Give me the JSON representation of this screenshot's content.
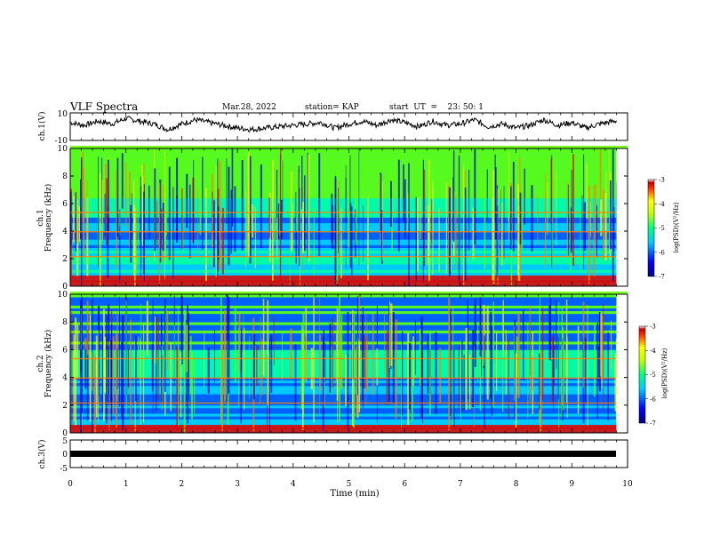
{
  "header": {
    "title": "VLF Spectra",
    "date": "Mar.28, 2022",
    "station": "station= KAP",
    "start": "start  UT  =    23: 50: 1"
  },
  "chart_data": [
    {
      "type": "line",
      "panel": "ch1",
      "ylabel": "ch.1(V)",
      "ylim": [
        -10,
        10
      ],
      "yticks": [
        "10",
        "-10"
      ],
      "xlim": [
        0,
        10
      ],
      "series": [
        {
          "x": [
            0,
            0.25,
            0.5,
            0.75,
            1,
            1.25,
            1.5,
            1.75,
            2,
            2.25,
            2.5,
            2.75,
            3,
            3.25,
            3.5,
            3.75,
            4,
            4.25,
            4.5,
            4.75,
            5,
            5.25,
            5.5,
            5.75,
            6,
            6.25,
            6.5,
            6.75,
            7,
            7.25,
            7.5,
            7.75,
            8,
            8.25,
            8.5,
            8.75,
            9,
            9.25,
            9.5,
            9.75
          ],
          "y": [
            3,
            1,
            4,
            2,
            6,
            4,
            2,
            -2,
            2,
            5,
            3,
            1,
            -1,
            -2,
            -1,
            0,
            1,
            2,
            3,
            -1,
            2,
            4,
            1,
            5,
            3,
            0,
            4,
            1,
            2,
            5,
            0,
            2,
            -1,
            1,
            5,
            1,
            3,
            -1,
            2,
            4
          ]
        }
      ]
    },
    {
      "type": "heatmap",
      "panel": "ch1-spectrogram",
      "ylabel": "ch.1 Frequency (kHz)",
      "ylim": [
        0,
        10
      ],
      "yticks": [
        "0",
        "2",
        "4",
        "6",
        "8",
        "10"
      ],
      "xlim": [
        0,
        10
      ],
      "colorbar": {
        "label": "log(PSD)(V²/Hz)",
        "range": [
          -7,
          -3
        ],
        "ticks": [
          "-3",
          "-4",
          "-5",
          "-6",
          "-7"
        ]
      }
    },
    {
      "type": "heatmap",
      "panel": "ch2-spectrogram",
      "ylabel": "ch.2 Frequency (kHz)",
      "ylim": [
        0,
        10
      ],
      "yticks": [
        "0",
        "2",
        "4",
        "6",
        "8",
        "10"
      ],
      "xlim": [
        0,
        10
      ],
      "colorbar": {
        "label": "log(PSD)(V²/Hz)",
        "range": [
          -7,
          -3
        ],
        "ticks": [
          "-3",
          "-4",
          "-5",
          "-6",
          "-7"
        ]
      }
    },
    {
      "type": "line",
      "panel": "ch3",
      "ylabel": "ch.3(V)",
      "ylim": [
        -5,
        5
      ],
      "yticks": [
        "5",
        "0",
        "-5"
      ],
      "xlim": [
        0,
        10
      ],
      "series": [
        {
          "x": [
            0,
            9.8
          ],
          "y": [
            0,
            0
          ]
        }
      ]
    }
  ],
  "xaxis": {
    "label": "Time  (min)",
    "ticks": [
      "0",
      "1",
      "2",
      "3",
      "4",
      "5",
      "6",
      "7",
      "8",
      "9",
      "10"
    ]
  },
  "colors": {
    "trace": "#000000",
    "colormap": [
      "#0000c8",
      "#0050ff",
      "#00c8ff",
      "#00ffa0",
      "#64ff00",
      "#ffff00",
      "#ff8000",
      "#e00000",
      "#ffffff"
    ]
  }
}
